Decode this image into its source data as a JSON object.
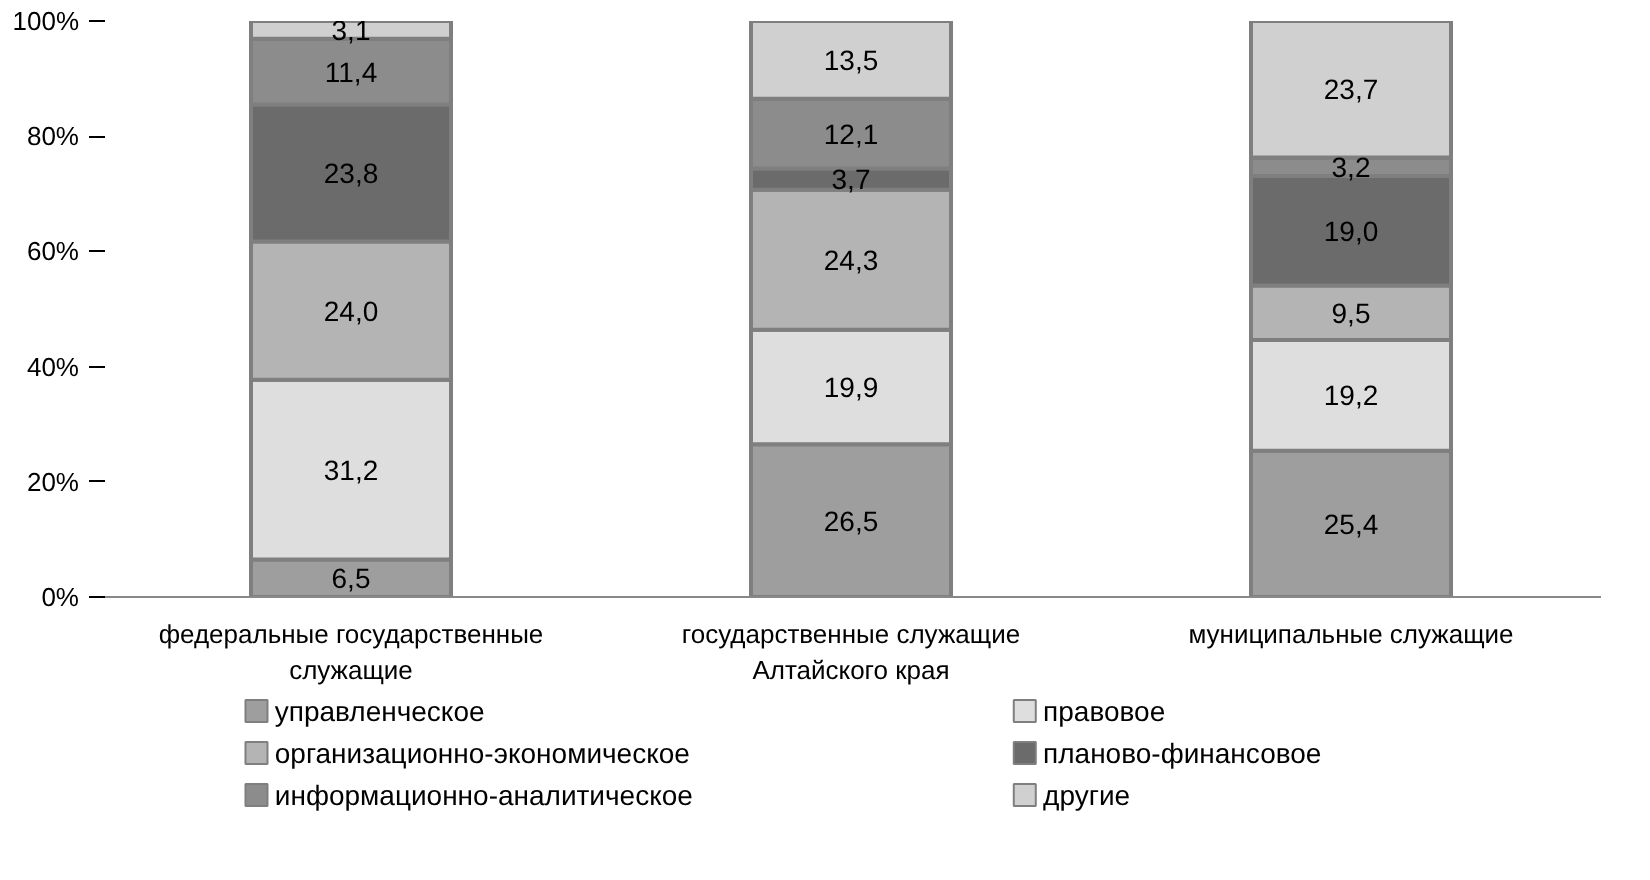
{
  "chart_data": {
    "type": "bar",
    "stacked": true,
    "legend": "bottom",
    "categories": [
      "федеральные государственные служащие",
      "государственные служащие Алтайского края",
      "муниципальные служащие"
    ],
    "ylim": [
      0,
      100
    ],
    "yticks": [
      {
        "value": 0,
        "label": "0%"
      },
      {
        "value": 20,
        "label": "20%"
      },
      {
        "value": 40,
        "label": "40%"
      },
      {
        "value": 60,
        "label": "60%"
      },
      {
        "value": 80,
        "label": "80%"
      },
      {
        "value": 100,
        "label": "100%"
      }
    ],
    "series": [
      {
        "name": "управленческое",
        "color": "#9e9e9e",
        "values": [
          6.5,
          26.5,
          25.4
        ],
        "value_labels": [
          "6,5",
          "26,5",
          "25,4"
        ]
      },
      {
        "name": "правовое",
        "color": "#dedede",
        "values": [
          31.2,
          19.9,
          19.2
        ],
        "value_labels": [
          "31,2",
          "19,9",
          "19,2"
        ]
      },
      {
        "name": "организационно-экономическое",
        "color": "#b4b4b4",
        "values": [
          24.0,
          24.3,
          9.5
        ],
        "value_labels": [
          "24,0",
          "24,3",
          "9,5"
        ]
      },
      {
        "name": "планово-финансовое",
        "color": "#6b6b6b",
        "values": [
          23.8,
          3.7,
          19.0
        ],
        "value_labels": [
          "23,8",
          "3,7",
          "19,0"
        ]
      },
      {
        "name": "информационно-аналитическое",
        "color": "#8c8c8c",
        "values": [
          11.4,
          12.1,
          3.2
        ],
        "value_labels": [
          "11,4",
          "12,1",
          "3,2"
        ]
      },
      {
        "name": "другие",
        "color": "#d0d0d0",
        "values": [
          3.1,
          13.5,
          23.7
        ],
        "value_labels": [
          "3,1",
          "13,5",
          "23,7"
        ]
      }
    ]
  }
}
